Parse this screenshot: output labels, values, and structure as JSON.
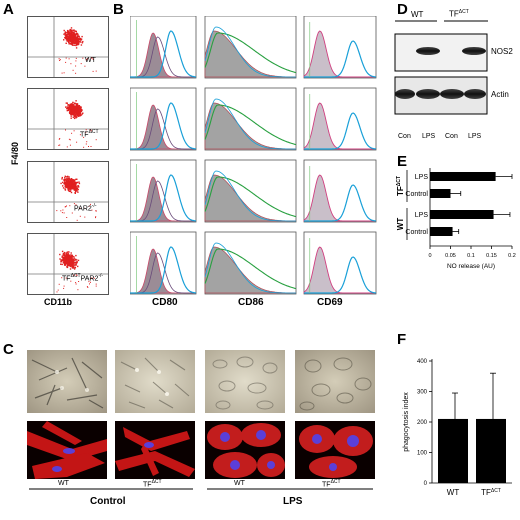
{
  "panels": {
    "A": "A",
    "B": "B",
    "C": "C",
    "D": "D",
    "E": "E",
    "F": "F"
  },
  "panel_a": {
    "y_axis": "F4/80",
    "x_axis": "CD11b",
    "rows": [
      {
        "label": "WT"
      },
      {
        "label": "TFΔCT",
        "label_main": "TF",
        "label_sup": "ΔCT"
      },
      {
        "label": "PAR2-/-",
        "label_main": "PAR2",
        "label_sup": "-/-"
      },
      {
        "label": "TFΔCT PAR2-/-",
        "label_main": "TF",
        "label_sup": "ΔCT",
        "label_main2": "PAR2",
        "label_sup2": "-/-"
      }
    ]
  },
  "panel_b": {
    "columns": [
      "CD80",
      "CD86",
      "CD69"
    ]
  },
  "panel_c": {
    "groups": [
      {
        "label": "Control"
      },
      {
        "label": "LPS"
      }
    ],
    "image_labels": [
      {
        "main": "WT",
        "sup": ""
      },
      {
        "main": "TF",
        "sup": "ΔCT"
      },
      {
        "main": "WT",
        "sup": ""
      },
      {
        "main": "TF",
        "sup": "ΔCT"
      }
    ]
  },
  "panel_d": {
    "groups": [
      {
        "main": "WT",
        "sup": ""
      },
      {
        "main": "TF",
        "sup": "ΔCT"
      }
    ],
    "band_labels": [
      "NOS2",
      "Actin"
    ],
    "lanes": [
      "Con",
      "LPS",
      "Con",
      "LPS"
    ]
  },
  "chart_data": [
    {
      "panel": "E",
      "type": "bar",
      "orientation": "horizontal",
      "groups": [
        {
          "main": "TF",
          "sup": "ΔCT"
        },
        {
          "main": "WT",
          "sup": ""
        }
      ],
      "categories": [
        "LPS",
        "Control",
        "LPS",
        "Control"
      ],
      "values": [
        0.16,
        0.05,
        0.155,
        0.055
      ],
      "errors": [
        0.04,
        0.025,
        0.04,
        0.015
      ],
      "xlabel": "NO release (AU)",
      "xlim": [
        0,
        0.2
      ],
      "xticks": [
        "0",
        "0.05",
        "0.1",
        "0.15",
        "0.2"
      ]
    },
    {
      "panel": "F",
      "type": "bar",
      "categories": [
        {
          "main": "WT",
          "sup": ""
        },
        {
          "main": "TF",
          "sup": "ΔCT"
        }
      ],
      "values": [
        210,
        210
      ],
      "errors": [
        85,
        150
      ],
      "ylabel": "phagocytosis index",
      "ylim": [
        0,
        400
      ],
      "yticks": [
        "0",
        "100",
        "200",
        "300",
        "400"
      ]
    }
  ]
}
